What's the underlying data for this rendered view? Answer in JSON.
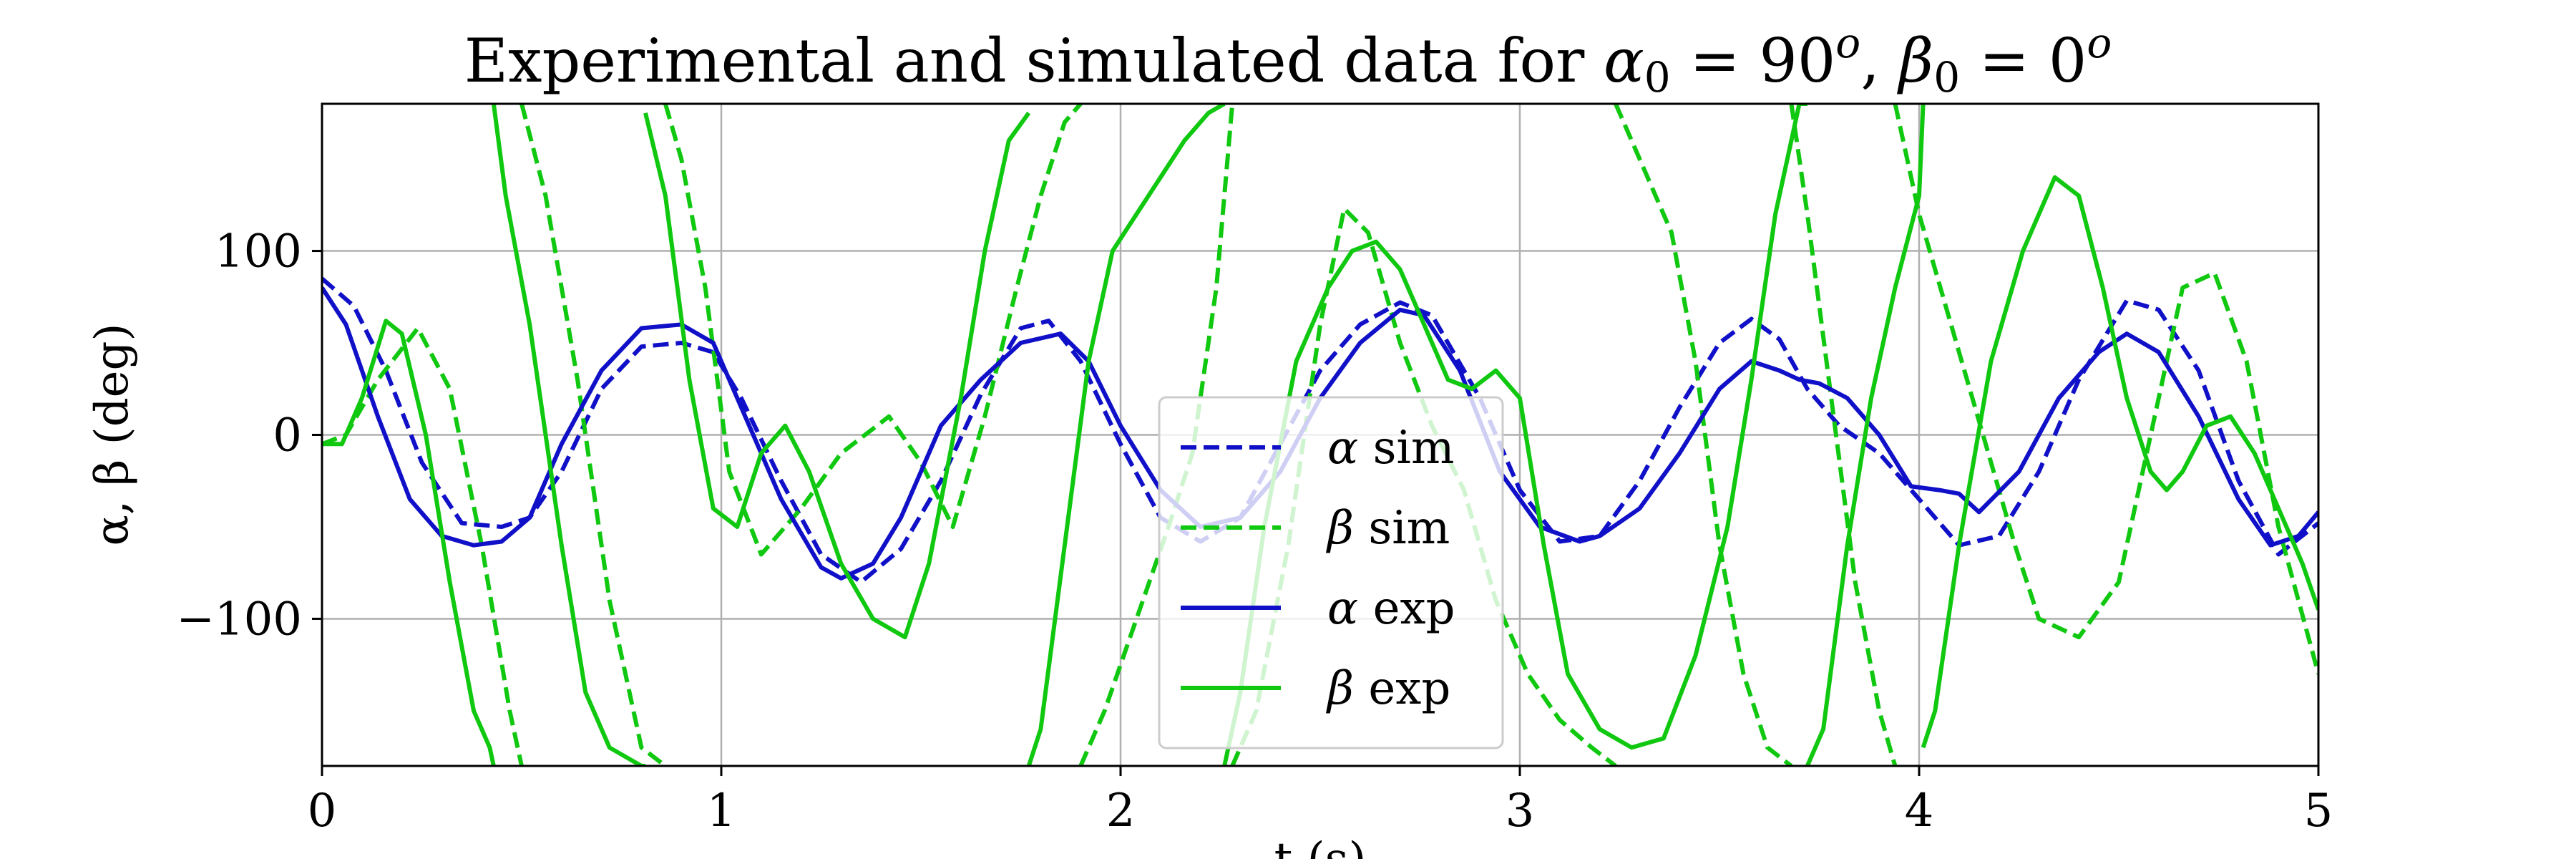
{
  "chart_data": {
    "type": "line",
    "title_parts": {
      "prefix": "Experimental and simulated data for ",
      "alpha_sym": "α",
      "alpha_sub": "0",
      "alpha_rest": " = 90",
      "alpha_sup": "o",
      "sep": ", ",
      "beta_sym": "β",
      "beta_sub": "0",
      "beta_rest": " = 0",
      "beta_sup": "o"
    },
    "xlabel": "t (s)",
    "ylabel": "α, β (deg)",
    "xlim": [
      0,
      5
    ],
    "ylim": [
      -180,
      180
    ],
    "xticks": [
      0,
      1,
      2,
      3,
      4,
      5
    ],
    "xtick_labels": [
      "0",
      "1",
      "2",
      "3",
      "4",
      "5"
    ],
    "yticks": [
      -100,
      0,
      100
    ],
    "ytick_labels": [
      "−100",
      "0",
      "100"
    ],
    "grid": true,
    "legend_position": "lower-center",
    "colors": {
      "blue": "#1010c8",
      "green": "#10c810",
      "grid": "#b0b0b0"
    },
    "series": [
      {
        "name": "α sim",
        "sym": "α",
        "rest": " sim",
        "color": "#1010c8",
        "style": "dashed",
        "x": [
          0,
          0.08,
          0.16,
          0.25,
          0.35,
          0.45,
          0.52,
          0.6,
          0.7,
          0.8,
          0.9,
          0.98,
          1.05,
          1.15,
          1.25,
          1.35,
          1.45,
          1.55,
          1.65,
          1.75,
          1.82,
          1.9,
          2.0,
          2.1,
          2.2,
          2.3,
          2.4,
          2.5,
          2.6,
          2.7,
          2.78,
          2.9,
          3.0,
          3.1,
          3.2,
          3.3,
          3.4,
          3.5,
          3.58,
          3.65,
          3.72,
          3.8,
          3.9,
          4.0,
          4.1,
          4.2,
          4.3,
          4.4,
          4.52,
          4.6,
          4.7,
          4.8,
          4.9,
          5.0
        ],
        "y": [
          85,
          70,
          35,
          -15,
          -48,
          -50,
          -45,
          -20,
          25,
          48,
          50,
          45,
          20,
          -25,
          -65,
          -80,
          -62,
          -25,
          22,
          58,
          62,
          40,
          -5,
          -45,
          -58,
          -45,
          -5,
          35,
          60,
          72,
          65,
          20,
          -30,
          -58,
          -55,
          -25,
          15,
          50,
          63,
          52,
          25,
          5,
          -10,
          -35,
          -60,
          -55,
          -20,
          30,
          73,
          68,
          35,
          -25,
          -65,
          -48
        ]
      },
      {
        "name": "β sim",
        "sym": "β",
        "rest": " sim",
        "color": "#10c810",
        "style": "dashed",
        "x": [
          0,
          0.06,
          0.14,
          0.24,
          0.32,
          0.4,
          0.47,
          0.5,
          0.5,
          0.56,
          0.64,
          0.72,
          0.8,
          0.86,
          0.86,
          0.9,
          0.96,
          1.02,
          1.1,
          1.2,
          1.3,
          1.42,
          1.5,
          1.58,
          1.66,
          1.74,
          1.8,
          1.86,
          1.9,
          1.9,
          1.96,
          2.04,
          2.12,
          2.18,
          2.24,
          2.28,
          2.28,
          2.34,
          2.42,
          2.5,
          2.56,
          2.62,
          2.7,
          2.78,
          2.86,
          2.94,
          3.02,
          3.1,
          3.18,
          3.24,
          3.24,
          3.3,
          3.38,
          3.44,
          3.5,
          3.56,
          3.62,
          3.68,
          3.68,
          3.72,
          3.78,
          3.84,
          3.9,
          3.94,
          3.94,
          4.0,
          4.08,
          4.16,
          4.24,
          4.3,
          4.4,
          4.5,
          4.6,
          4.66,
          4.74,
          4.82,
          4.9,
          5.0
        ],
        "y": [
          -5,
          0,
          30,
          58,
          25,
          -60,
          -150,
          -180,
          180,
          130,
          30,
          -90,
          -170,
          -180,
          180,
          150,
          80,
          -20,
          -65,
          -40,
          -10,
          10,
          -15,
          -50,
          10,
          80,
          130,
          170,
          180,
          -180,
          -150,
          -100,
          -50,
          -10,
          80,
          180,
          -180,
          -150,
          -60,
          60,
          123,
          110,
          50,
          5,
          -30,
          -90,
          -130,
          -155,
          -170,
          -180,
          180,
          150,
          110,
          40,
          -60,
          -130,
          -170,
          -180,
          180,
          120,
          20,
          -80,
          -150,
          -180,
          180,
          120,
          60,
          0,
          -60,
          -100,
          -110,
          -80,
          20,
          80,
          88,
          40,
          -50,
          -130
        ]
      },
      {
        "name": "α exp",
        "sym": "α",
        "rest": " exp",
        "color": "#1010c8",
        "style": "solid",
        "x": [
          0,
          0.06,
          0.14,
          0.22,
          0.3,
          0.38,
          0.45,
          0.52,
          0.6,
          0.7,
          0.8,
          0.9,
          0.98,
          1.05,
          1.15,
          1.25,
          1.3,
          1.38,
          1.45,
          1.55,
          1.65,
          1.75,
          1.85,
          1.92,
          2.0,
          2.1,
          2.2,
          2.3,
          2.4,
          2.5,
          2.6,
          2.7,
          2.76,
          2.85,
          2.95,
          3.05,
          3.15,
          3.2,
          3.3,
          3.4,
          3.5,
          3.58,
          3.65,
          3.7,
          3.75,
          3.82,
          3.9,
          3.98,
          4.05,
          4.1,
          4.15,
          4.25,
          4.35,
          4.45,
          4.52,
          4.6,
          4.7,
          4.8,
          4.88,
          4.95,
          5.0
        ],
        "y": [
          80,
          60,
          10,
          -35,
          -55,
          -60,
          -58,
          -45,
          -5,
          35,
          58,
          60,
          50,
          15,
          -35,
          -72,
          -78,
          -70,
          -45,
          5,
          30,
          50,
          55,
          40,
          5,
          -30,
          -50,
          -45,
          -20,
          20,
          50,
          68,
          65,
          35,
          -20,
          -50,
          -58,
          -55,
          -40,
          -10,
          25,
          40,
          35,
          30,
          28,
          20,
          0,
          -28,
          -30,
          -32,
          -42,
          -20,
          20,
          45,
          55,
          45,
          10,
          -35,
          -60,
          -55,
          -42
        ]
      },
      {
        "name": "β exp",
        "sym": "β",
        "rest": " exp",
        "color": "#10c810",
        "style": "solid",
        "x": [
          0,
          0.05,
          0.1,
          0.16,
          0.2,
          0.26,
          0.32,
          0.38,
          0.42,
          0.43,
          0.43,
          0.46,
          0.52,
          0.6,
          0.66,
          0.72,
          0.8,
          0.81,
          0.81,
          0.86,
          0.92,
          0.98,
          1.04,
          1.1,
          1.16,
          1.22,
          1.3,
          1.38,
          1.46,
          1.52,
          1.6,
          1.66,
          1.72,
          1.77,
          1.77,
          1.8,
          1.86,
          1.92,
          1.98,
          2.04,
          2.1,
          2.16,
          2.22,
          2.26,
          2.26,
          2.3,
          2.36,
          2.44,
          2.52,
          2.58,
          2.64,
          2.7,
          2.76,
          2.82,
          2.88,
          2.94,
          3.0,
          3.06,
          3.12,
          3.2,
          3.28,
          3.36,
          3.44,
          3.52,
          3.58,
          3.64,
          3.7,
          3.72,
          3.72,
          3.76,
          3.82,
          3.88,
          3.94,
          4.0,
          4.01,
          4.01,
          4.04,
          4.1,
          4.18,
          4.26,
          4.34,
          4.4,
          4.46,
          4.52,
          4.58,
          4.62,
          4.66,
          4.72,
          4.78,
          4.84,
          4.9,
          4.96,
          5.0
        ],
        "y": [
          -5,
          -5,
          20,
          62,
          55,
          0,
          -80,
          -150,
          -170,
          -180,
          180,
          130,
          60,
          -60,
          -140,
          -170,
          -180,
          -180,
          175,
          130,
          30,
          -40,
          -50,
          -10,
          5,
          -20,
          -70,
          -100,
          -110,
          -70,
          20,
          100,
          160,
          175,
          -180,
          -160,
          -60,
          40,
          100,
          120,
          140,
          160,
          175,
          180,
          -180,
          -140,
          -50,
          40,
          80,
          100,
          105,
          90,
          60,
          30,
          25,
          35,
          20,
          -60,
          -130,
          -160,
          -170,
          -165,
          -120,
          -50,
          30,
          120,
          180,
          180,
          -180,
          -160,
          -60,
          20,
          80,
          130,
          180,
          -170,
          -150,
          -60,
          40,
          100,
          140,
          130,
          80,
          20,
          -20,
          -30,
          -20,
          5,
          10,
          -10,
          -40,
          -70,
          -95
        ]
      }
    ]
  }
}
